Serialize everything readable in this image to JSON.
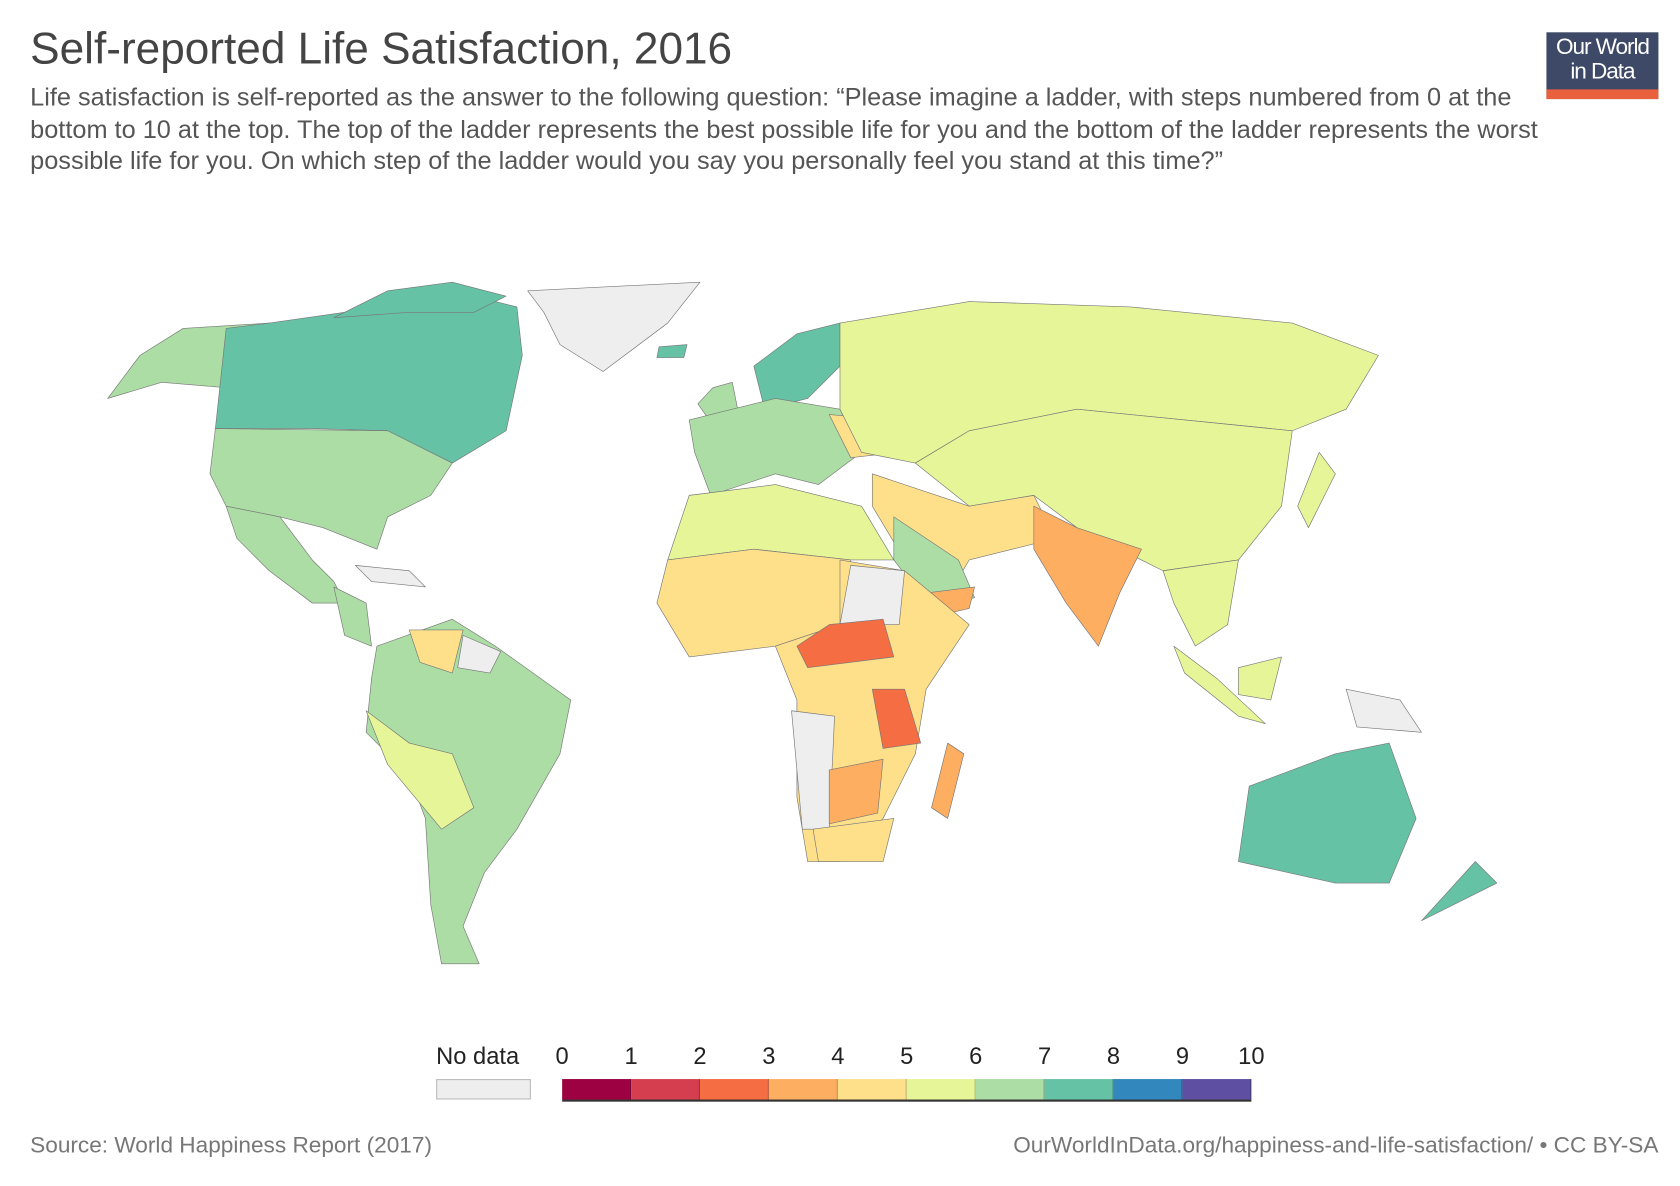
{
  "header": {
    "title": "Self-reported Life Satisfaction, 2016",
    "subtitle": "Life satisfaction is self-reported as the answer to the following question: “Please imagine a ladder, with steps numbered from 0 at the bottom to 10 at the top. The top of the ladder represents the best possible life for you and the bottom of the ladder represents the worst possible life for you. On which step of the ladder would you say you personally feel you stand at this time?”",
    "logo_text": "Our World in Data"
  },
  "legend": {
    "no_data_label": "No data",
    "no_data_color": "#eeeeee",
    "ticks": [
      "0",
      "1",
      "2",
      "3",
      "4",
      "5",
      "6",
      "7",
      "8",
      "9",
      "10"
    ],
    "colors": [
      "#9e0142",
      "#d53e4f",
      "#f46d43",
      "#fdae61",
      "#fee08b",
      "#e6f598",
      "#abdda4",
      "#66c2a5",
      "#3288bd",
      "#5e4fa2"
    ]
  },
  "footer": {
    "source": "Source: World Happiness Report (2017)",
    "url": "OurWorldInData.org/happiness-and-life-satisfaction/ • CC BY-SA"
  }
}
